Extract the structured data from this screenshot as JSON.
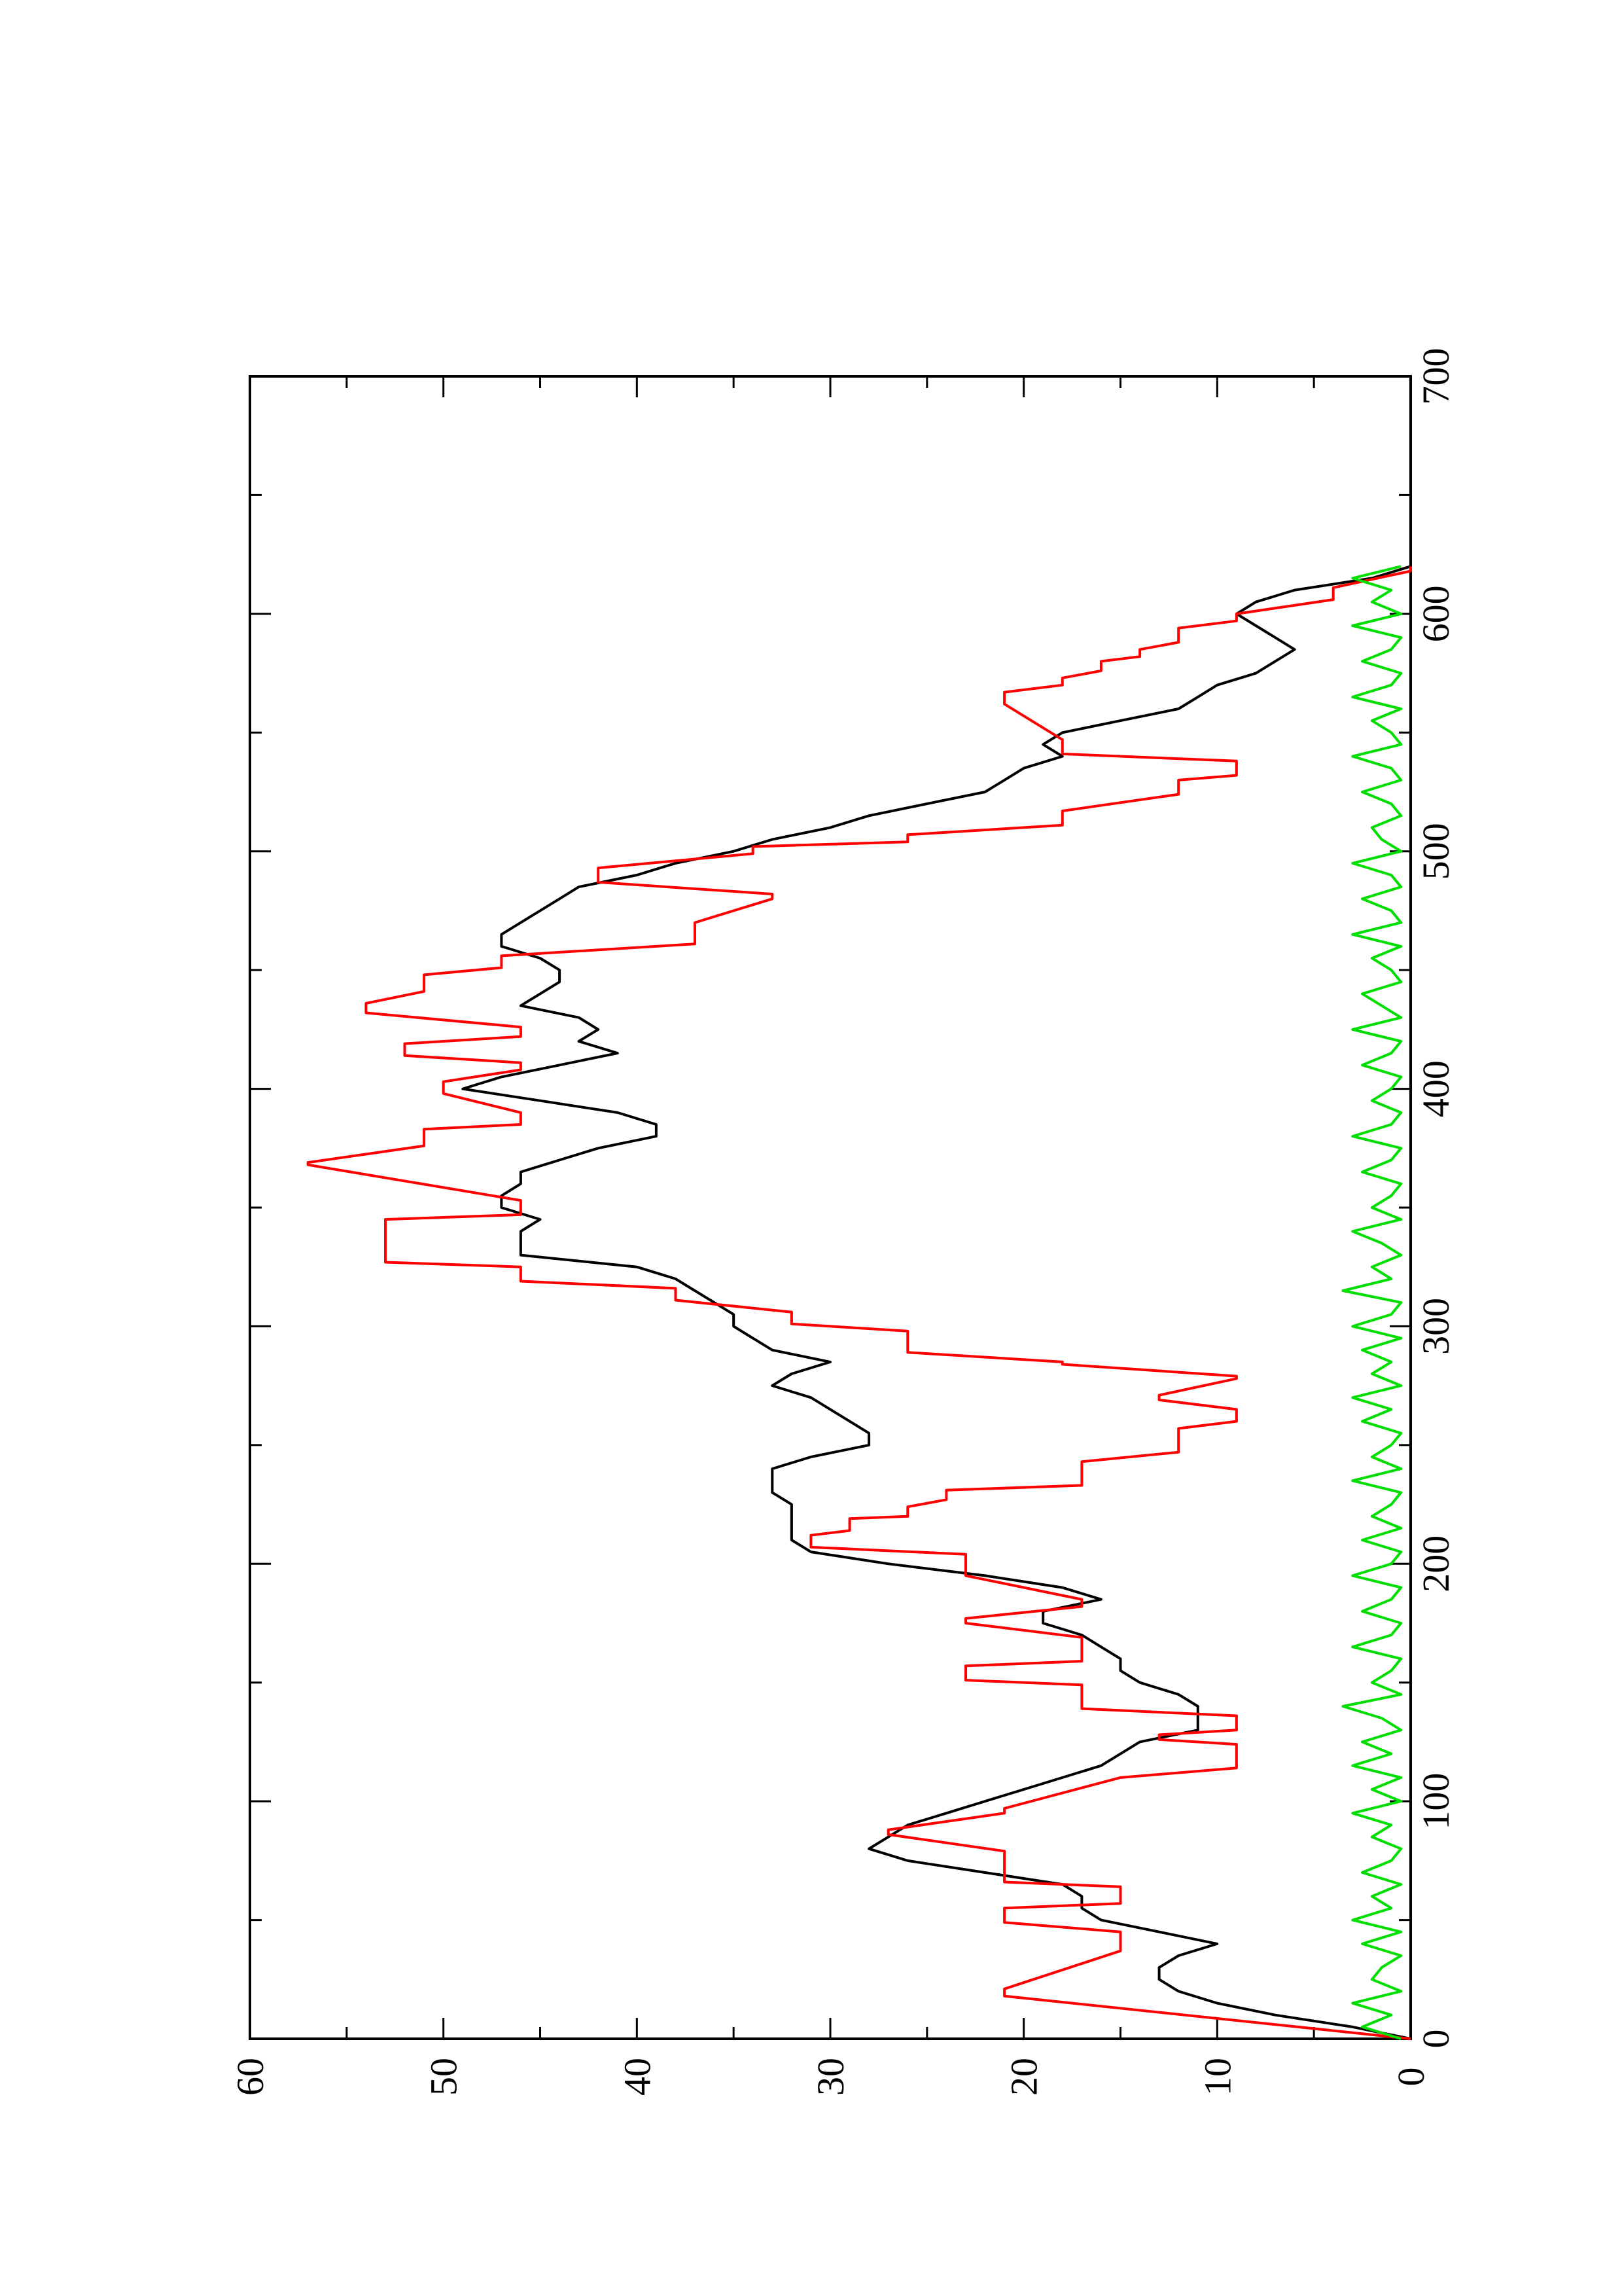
{
  "chart_data": {
    "type": "line",
    "orientation": "rotated-90-ccw",
    "title": "",
    "xlabel": "",
    "ylabel": "",
    "xlim": [
      0,
      700
    ],
    "ylim": [
      0,
      60
    ],
    "grid": false,
    "x_ticks": [
      "0",
      "100",
      "200",
      "300",
      "400",
      "500",
      "600",
      "700"
    ],
    "y_ticks": [
      "0",
      "10",
      "20",
      "30",
      "40",
      "50",
      "60"
    ],
    "series": [
      {
        "color": "#000000",
        "x": [
          0,
          5,
          10,
          15,
          20,
          25,
          30,
          35,
          40,
          45,
          50,
          55,
          60,
          65,
          70,
          75,
          80,
          85,
          90,
          95,
          100,
          105,
          110,
          115,
          120,
          125,
          130,
          135,
          140,
          145,
          150,
          155,
          160,
          165,
          170,
          175,
          180,
          185,
          190,
          195,
          200,
          205,
          210,
          215,
          220,
          225,
          230,
          235,
          240,
          245,
          250,
          255,
          260,
          265,
          270,
          275,
          280,
          285,
          290,
          295,
          300,
          305,
          310,
          315,
          320,
          325,
          330,
          335,
          340,
          345,
          350,
          355,
          360,
          365,
          370,
          375,
          380,
          385,
          390,
          395,
          400,
          405,
          410,
          415,
          420,
          425,
          430,
          435,
          440,
          445,
          450,
          455,
          460,
          465,
          470,
          475,
          480,
          485,
          490,
          495,
          500,
          505,
          510,
          515,
          520,
          525,
          530,
          535,
          540,
          545,
          550,
          555,
          560,
          565,
          570,
          575,
          580,
          585,
          590,
          595,
          600,
          605,
          610,
          615,
          620
        ],
        "y": [
          0,
          3,
          7,
          10,
          12,
          13,
          13,
          12,
          10,
          13,
          16,
          17,
          17,
          18,
          22,
          26,
          28,
          27,
          26,
          24,
          22,
          20,
          18,
          16,
          15,
          14,
          11,
          11,
          11,
          12,
          14,
          15,
          15,
          16,
          17,
          19,
          19,
          16,
          18,
          22,
          27,
          31,
          32,
          32,
          32,
          32,
          33,
          33,
          33,
          31,
          28,
          28,
          29,
          30,
          31,
          33,
          32,
          30,
          33,
          34,
          35,
          35,
          36,
          37,
          38,
          40,
          46,
          46,
          46,
          45,
          47,
          47,
          46,
          46,
          44,
          42,
          39,
          39,
          41,
          45,
          49,
          47,
          44,
          41,
          43,
          42,
          43,
          46,
          45,
          44,
          44,
          45,
          47,
          47,
          46,
          45,
          44,
          43,
          40,
          38,
          35,
          33,
          30,
          28,
          25,
          22,
          21,
          20,
          18,
          19,
          18,
          15,
          12,
          11,
          10,
          8,
          7,
          6,
          7,
          8,
          9,
          8,
          6,
          2,
          0
        ]
      },
      {
        "color": "#ff0000",
        "x": [
          0,
          18,
          21,
          37,
          45,
          49,
          55,
          57,
          64,
          66,
          79,
          86,
          88,
          95,
          97,
          110,
          114,
          124,
          126,
          128,
          130,
          136,
          139,
          149,
          151,
          157,
          159,
          169,
          175,
          177,
          182,
          185,
          195,
          204,
          207,
          212,
          214,
          219,
          220,
          224,
          227,
          231,
          233,
          243,
          247,
          257,
          260,
          265,
          269,
          271,
          278,
          279,
          284,
          285,
          289,
          298,
          301,
          306,
          311,
          316,
          319,
          325,
          327,
          345,
          347,
          353,
          368,
          369,
          376,
          383,
          385,
          390,
          398,
          403,
          408,
          411,
          414,
          419,
          422,
          426,
          432,
          436,
          441,
          448,
          451,
          456,
          461,
          470,
          480,
          482,
          487,
          493,
          499,
          502,
          504,
          507,
          511,
          517,
          524,
          530,
          532,
          538,
          541,
          547,
          562,
          567,
          570,
          573,
          576,
          580,
          582,
          585,
          588,
          594,
          597,
          600,
          606,
          611,
          618,
          620
        ],
        "y": [
          0,
          21,
          21,
          15,
          15,
          21,
          21,
          15,
          15,
          21,
          21,
          27,
          27,
          21,
          21,
          15,
          9,
          9,
          13,
          13,
          9,
          9,
          17,
          17,
          23,
          23,
          17,
          17,
          23,
          23,
          17,
          17,
          23,
          23,
          31,
          31,
          29,
          29,
          26,
          26,
          24,
          24,
          17,
          17,
          12,
          12,
          9,
          9,
          13,
          13,
          9,
          9,
          18,
          18,
          26,
          26,
          32,
          32,
          38,
          38,
          46,
          46,
          53,
          53,
          46,
          46,
          57,
          57,
          51,
          51,
          46,
          46,
          50,
          50,
          46,
          46,
          52,
          52,
          46,
          46,
          54,
          54,
          51,
          51,
          47,
          47,
          37,
          37,
          33,
          33,
          42,
          42,
          34,
          34,
          26,
          26,
          18,
          18,
          12,
          12,
          9,
          9,
          18,
          18,
          21,
          21,
          18,
          18,
          16,
          16,
          14,
          14,
          12,
          12,
          9,
          9,
          4,
          4,
          0,
          0
        ]
      },
      {
        "color": "#00dd00",
        "x": [
          0,
          5,
          10,
          15,
          20,
          25,
          30,
          35,
          40,
          45,
          50,
          55,
          60,
          65,
          70,
          75,
          80,
          85,
          90,
          95,
          100,
          105,
          110,
          115,
          120,
          125,
          130,
          135,
          140,
          145,
          150,
          155,
          160,
          165,
          170,
          175,
          180,
          185,
          190,
          195,
          200,
          205,
          210,
          215,
          220,
          225,
          230,
          235,
          240,
          245,
          250,
          255,
          260,
          265,
          270,
          275,
          280,
          285,
          290,
          295,
          300,
          305,
          310,
          315,
          320,
          325,
          330,
          335,
          340,
          345,
          350,
          355,
          360,
          365,
          370,
          375,
          380,
          385,
          390,
          395,
          400,
          405,
          410,
          415,
          420,
          425,
          430,
          435,
          440,
          445,
          450,
          455,
          460,
          465,
          470,
          475,
          480,
          485,
          490,
          495,
          500,
          505,
          510,
          515,
          520,
          525,
          530,
          535,
          540,
          545,
          550,
          555,
          560,
          565,
          570,
          575,
          580,
          585,
          590,
          595,
          600,
          605,
          610,
          615,
          620
        ],
        "y": [
          0.5,
          2.5,
          1,
          3,
          0.5,
          2,
          1.5,
          0.5,
          2.5,
          0.5,
          3,
          1,
          2,
          0.5,
          2.5,
          1,
          0.5,
          2,
          1,
          3,
          0.5,
          2,
          0.5,
          3,
          1,
          2.5,
          0.5,
          1.5,
          3.5,
          0.5,
          2,
          1,
          0.5,
          3,
          1,
          0.5,
          2.5,
          1,
          0.5,
          3,
          1,
          0.5,
          2.5,
          0.5,
          2,
          1,
          0.5,
          3,
          0.5,
          2,
          1,
          0.5,
          2.5,
          1,
          3,
          0.5,
          2,
          1,
          2.5,
          0.5,
          3,
          1,
          0.5,
          3.5,
          1,
          2,
          0.5,
          1.5,
          3,
          0.5,
          2,
          1,
          0.5,
          2.5,
          1,
          0.5,
          3,
          1,
          0.5,
          2,
          1,
          0.5,
          2.5,
          1,
          0.5,
          3,
          0.5,
          1.5,
          2.5,
          0.5,
          1,
          2,
          0.5,
          3,
          0.5,
          1,
          2.5,
          0.5,
          1,
          3,
          0.5,
          1.5,
          2,
          0.5,
          1,
          2.5,
          0.5,
          1,
          3,
          0.5,
          1,
          2,
          0.5,
          3,
          1,
          0.5,
          2.5,
          1,
          0.5,
          3,
          0.5,
          2,
          1,
          3,
          0.5
        ]
      }
    ]
  }
}
